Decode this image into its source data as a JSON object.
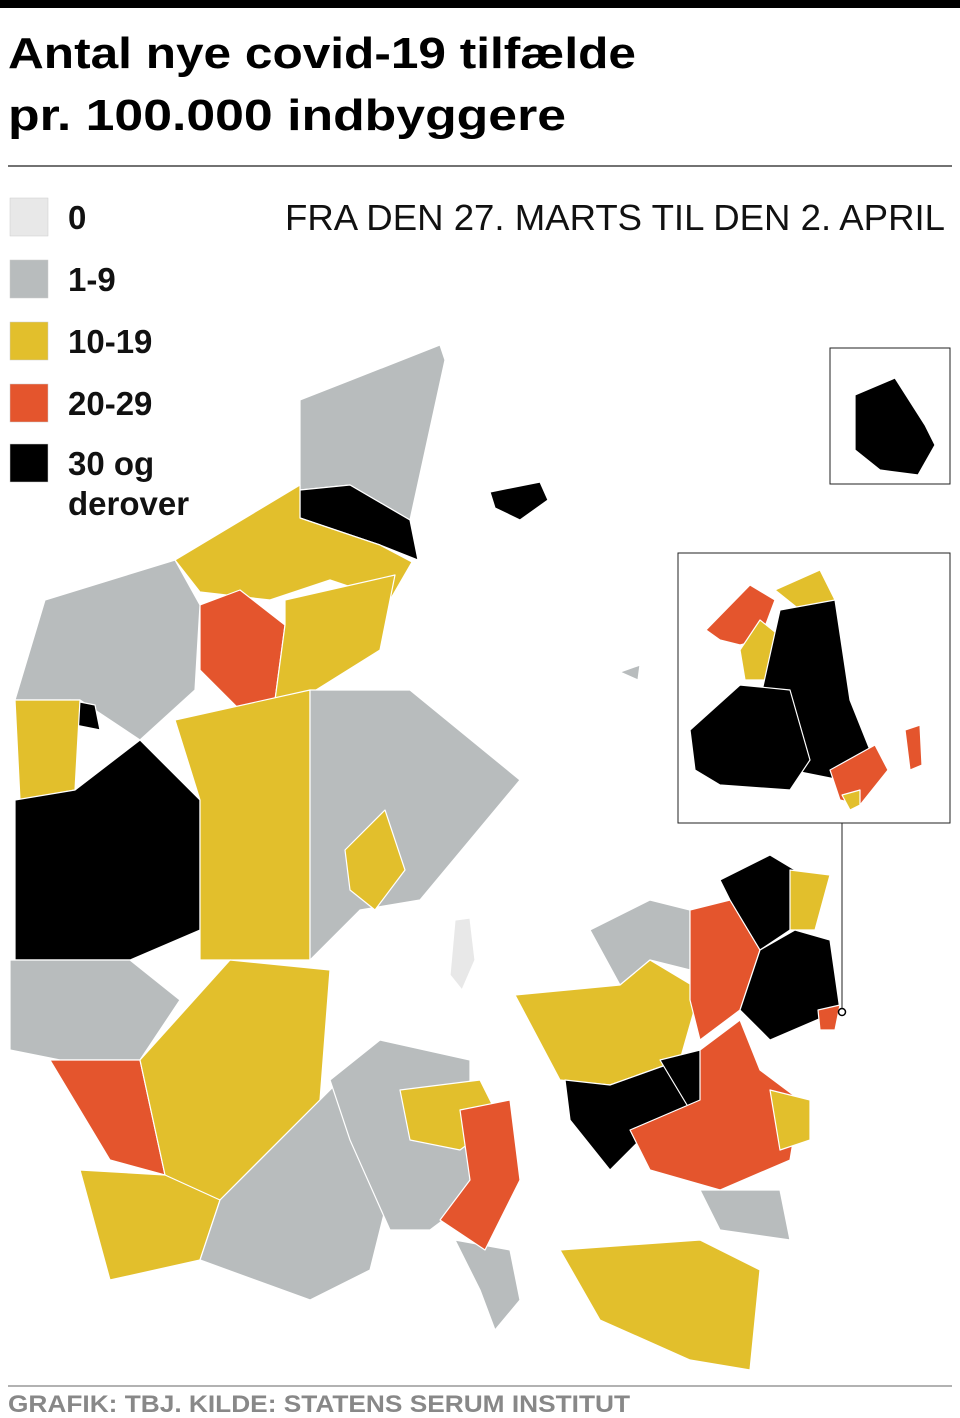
{
  "header": {
    "title": [
      "Antal nye covid-19 tilfælde",
      "pr. 100.000 indbyggere"
    ]
  },
  "period": "FRA DEN 27. MARTS TIL DEN 2. APRIL",
  "legend": {
    "items": [
      {
        "label": [
          "0"
        ],
        "color": "#e8e8e8"
      },
      {
        "label": [
          "1-9"
        ],
        "color": "#b8bcbd"
      },
      {
        "label": [
          "10-19"
        ],
        "color": "#e2bf2c"
      },
      {
        "label": [
          "20-29"
        ],
        "color": "#e4552d"
      },
      {
        "label": [
          "30 og",
          "derover"
        ],
        "color": "#000000"
      }
    ]
  },
  "credit": "GRAFIK: TBJ. KILDE: STATENS SERUM INSTITUT"
}
